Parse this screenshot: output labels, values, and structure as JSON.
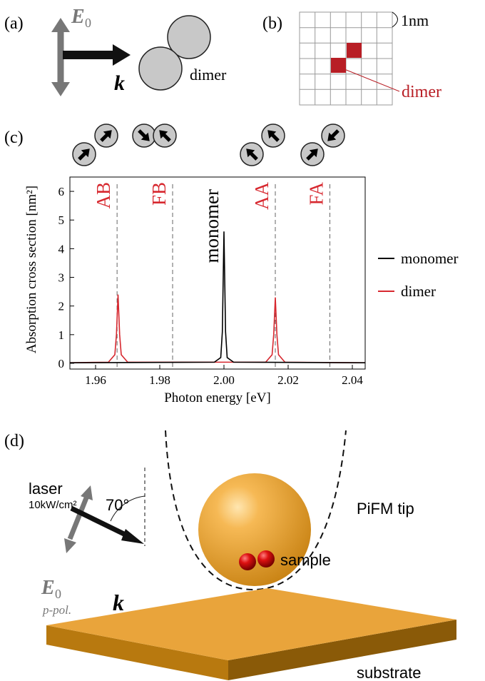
{
  "panels": {
    "a": {
      "label": "(a)",
      "field": "E",
      "field_sub": "0",
      "wavevector": "k",
      "object": "dimer"
    },
    "b": {
      "label": "(b)",
      "scale": "1nm",
      "object": "dimer"
    },
    "c": {
      "label": "(c)"
    },
    "d": {
      "label": "(d)",
      "source": "laser",
      "intensity": "10kW/cm²",
      "angle": "70°",
      "field": "E",
      "field_sub": "0",
      "polarization": "p-pol.",
      "wavevector": "k",
      "tip": "PiFM tip",
      "sample": "sample",
      "substrate": "substrate"
    }
  },
  "chart_data": {
    "type": "line",
    "xlabel": "Photon energy [eV]",
    "ylabel": "Absorption cross section [nm²]",
    "xlim": [
      1.952,
      2.044
    ],
    "ylim": [
      -0.2,
      6.5
    ],
    "xticks": [
      1.96,
      1.98,
      {
        "value": 2,
        "label": "2.00"
      },
      2.02,
      2.04
    ],
    "yticks": [
      0,
      1,
      2,
      3,
      4,
      5,
      6
    ],
    "mode_labels": [
      "AB",
      "FB",
      "AA",
      "FA"
    ],
    "mode_energies": [
      1.9667,
      1.984,
      2.016,
      2.033
    ],
    "series": [
      {
        "name": "monomer",
        "color": "#000000",
        "x": [
          1.952,
          1.997,
          1.999,
          1.9995,
          2.0,
          2.0005,
          2.001,
          2.003,
          2.044
        ],
        "values": [
          0.02,
          0.04,
          0.2,
          1.1,
          4.6,
          1.1,
          0.2,
          0.04,
          0.02
        ]
      },
      {
        "name": "dimer",
        "color": "#d7282f",
        "x": [
          1.952,
          1.964,
          1.966,
          1.9665,
          1.967,
          1.9675,
          1.968,
          1.97,
          2.013,
          2.015,
          2.0155,
          2.016,
          2.0165,
          2.017,
          2.019,
          2.044
        ],
        "values": [
          0.02,
          0.04,
          0.3,
          1.0,
          2.4,
          1.0,
          0.3,
          0.04,
          0.04,
          0.3,
          1.0,
          2.3,
          1.0,
          0.3,
          0.04,
          0.02
        ]
      }
    ]
  }
}
